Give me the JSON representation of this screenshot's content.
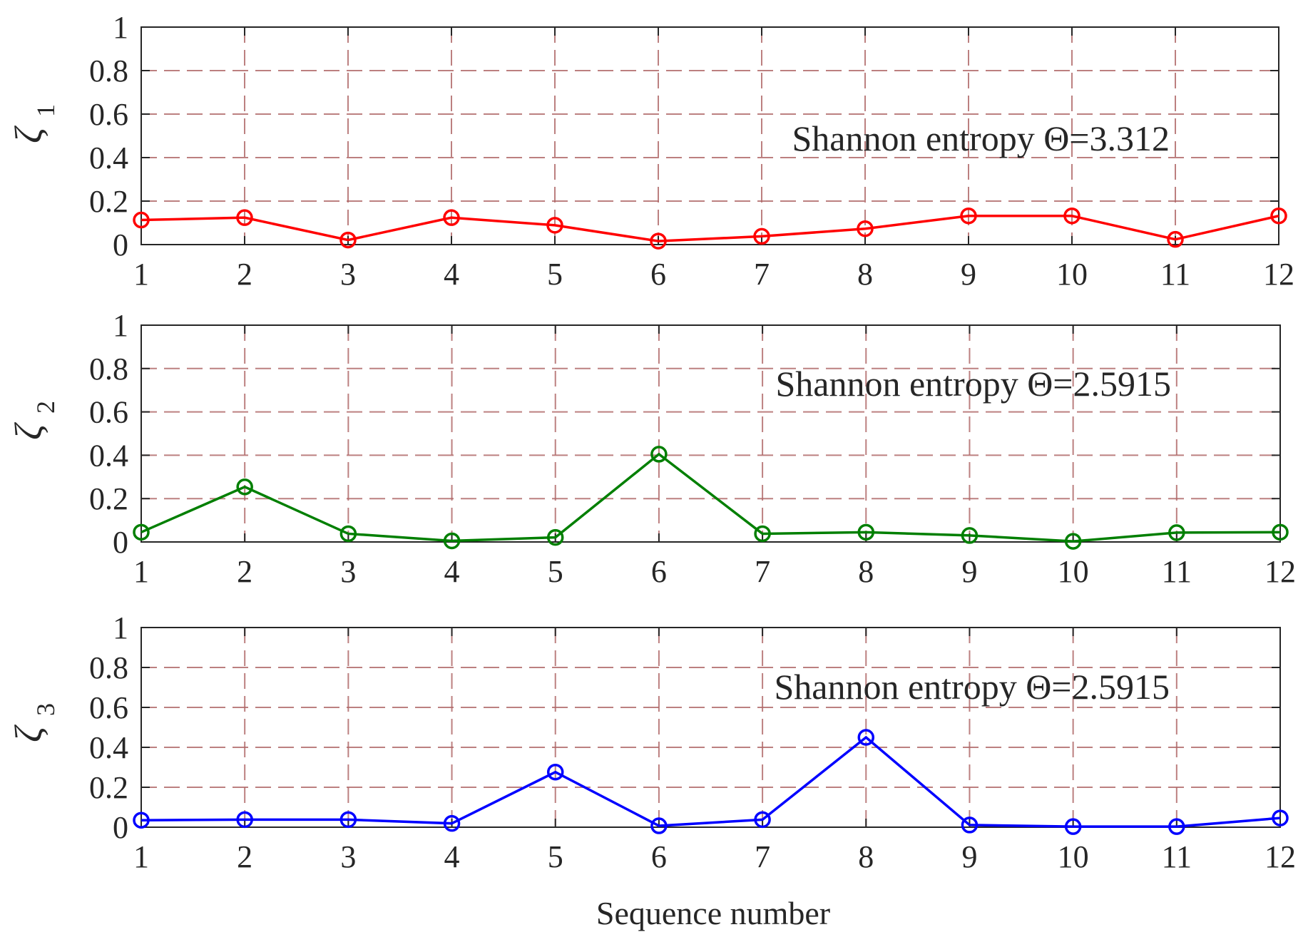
{
  "chart_data": [
    {
      "type": "line",
      "ylabel": "ζ",
      "ylabel_subscript": "1",
      "xlabel": "",
      "categories": [
        "1",
        "2",
        "3",
        "4",
        "5",
        "6",
        "7",
        "8",
        "9",
        "10",
        "11",
        "12"
      ],
      "x": [
        1,
        2,
        3,
        4,
        5,
        6,
        7,
        8,
        9,
        10,
        11,
        12
      ],
      "values": [
        0.113,
        0.124,
        0.021,
        0.124,
        0.089,
        0.016,
        0.038,
        0.073,
        0.132,
        0.132,
        0.024,
        0.132
      ],
      "xlim": [
        1,
        12
      ],
      "ylim": [
        0,
        1
      ],
      "yticks": [
        "0",
        "0.2",
        "0.4",
        "0.6",
        "0.8",
        "1"
      ],
      "grid": true,
      "marker": "circle",
      "color": "#ff0000",
      "annotation": "Shannon entropy Θ=3.312"
    },
    {
      "type": "line",
      "ylabel": "ζ",
      "ylabel_subscript": "2",
      "xlabel": "",
      "categories": [
        "1",
        "2",
        "3",
        "4",
        "5",
        "6",
        "7",
        "8",
        "9",
        "10",
        "11",
        "12"
      ],
      "x": [
        1,
        2,
        3,
        4,
        5,
        6,
        7,
        8,
        9,
        10,
        11,
        12
      ],
      "values": [
        0.045,
        0.254,
        0.038,
        0.005,
        0.021,
        0.405,
        0.038,
        0.045,
        0.03,
        0.003,
        0.043,
        0.045
      ],
      "xlim": [
        1,
        12
      ],
      "ylim": [
        0,
        1
      ],
      "yticks": [
        "0",
        "0.2",
        "0.4",
        "0.6",
        "0.8",
        "1"
      ],
      "grid": true,
      "marker": "circle",
      "color": "#007f00",
      "annotation": "Shannon entropy Θ=2.5915"
    },
    {
      "type": "line",
      "ylabel": "ζ",
      "ylabel_subscript": "3",
      "xlabel": "Sequence number",
      "categories": [
        "1",
        "2",
        "3",
        "4",
        "5",
        "6",
        "7",
        "8",
        "9",
        "10",
        "11",
        "12"
      ],
      "x": [
        1,
        2,
        3,
        4,
        5,
        6,
        7,
        8,
        9,
        10,
        11,
        12
      ],
      "values": [
        0.035,
        0.038,
        0.038,
        0.019,
        0.276,
        0.007,
        0.038,
        0.45,
        0.011,
        0.003,
        0.003,
        0.046
      ],
      "xlim": [
        1,
        12
      ],
      "ylim": [
        0,
        1
      ],
      "yticks": [
        "0",
        "0.2",
        "0.4",
        "0.6",
        "0.8",
        "1"
      ],
      "grid": true,
      "marker": "circle",
      "color": "#0000ff",
      "annotation": "Shannon entropy Θ=2.5915"
    }
  ],
  "colors": {
    "grid": "#b06a6a",
    "axis": "#262626"
  }
}
